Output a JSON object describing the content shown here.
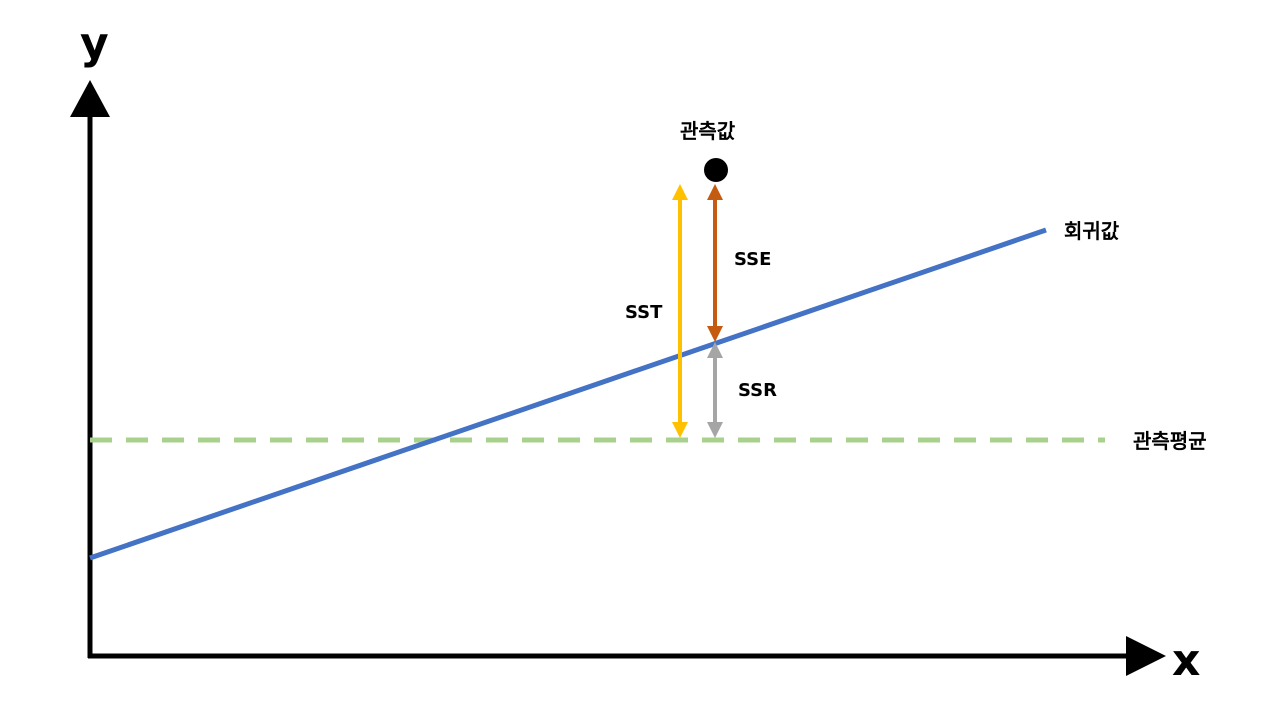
{
  "axes": {
    "x_label": "x",
    "y_label": "y"
  },
  "labels": {
    "observed": "관측값",
    "regression": "회귀값",
    "mean": "관측평균",
    "sst": "SST",
    "sse": "SSE",
    "ssr": "SSR"
  },
  "colors": {
    "axis": "#000000",
    "regression_line": "#4472C4",
    "mean_line": "#A9D18E",
    "sst_arrow": "#FFC000",
    "sse_arrow": "#C55A11",
    "ssr_arrow": "#A5A5A5",
    "observed_point": "#000000"
  }
}
